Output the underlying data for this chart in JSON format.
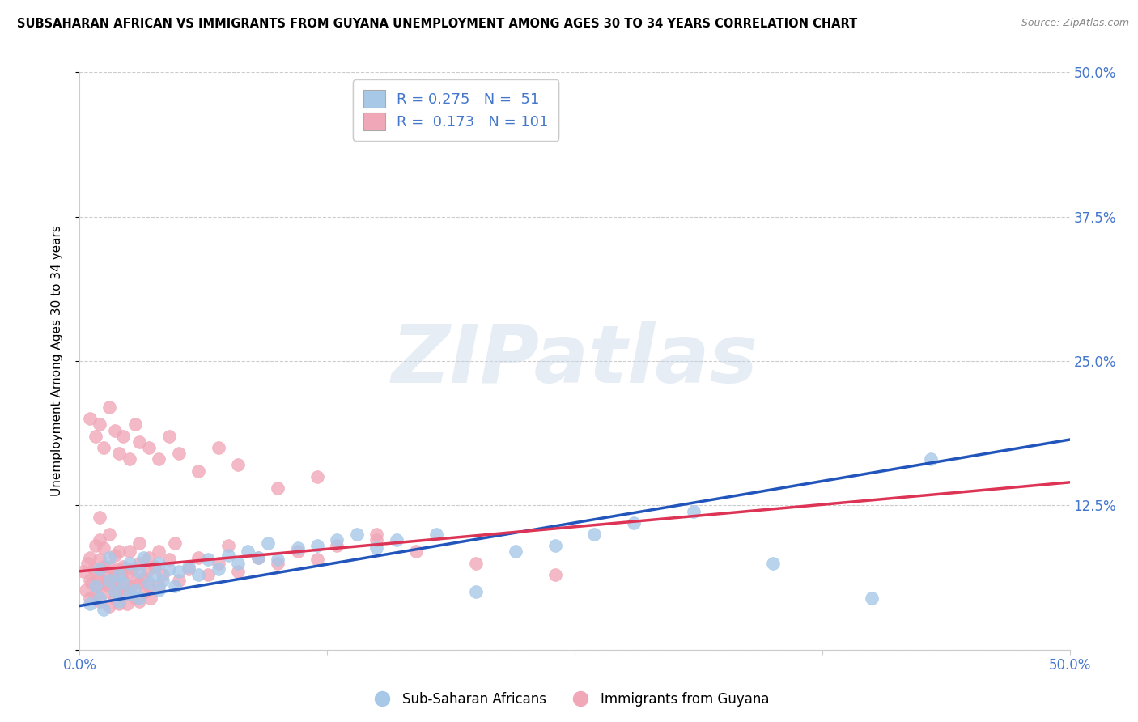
{
  "title": "SUBSAHARAN AFRICAN VS IMMIGRANTS FROM GUYANA UNEMPLOYMENT AMONG AGES 30 TO 34 YEARS CORRELATION CHART",
  "source": "Source: ZipAtlas.com",
  "ylabel": "Unemployment Among Ages 30 to 34 years",
  "xlim": [
    0,
    0.5
  ],
  "ylim": [
    0,
    0.5
  ],
  "xticks": [
    0.0,
    0.125,
    0.25,
    0.375,
    0.5
  ],
  "xticklabels": [
    "0.0%",
    "",
    "",
    "",
    "50.0%"
  ],
  "yticks": [
    0.0,
    0.125,
    0.25,
    0.375,
    0.5
  ],
  "yticklabels_right": [
    "",
    "12.5%",
    "25.0%",
    "37.5%",
    "50.0%"
  ],
  "blue_fill": "#a8c8e8",
  "pink_fill": "#f0a8b8",
  "blue_line": "#2255bb",
  "pink_line": "#dd3355",
  "tick_color": "#4477cc",
  "grid_color": "#cccccc",
  "R_blue": 0.275,
  "N_blue": 51,
  "R_pink": 0.173,
  "N_pink": 101,
  "legend_label_blue": "Sub-Saharan Africans",
  "legend_label_pink": "Immigrants from Guyana",
  "watermark": "ZIPatlas",
  "blue_scatter_x": [
    0.005,
    0.008,
    0.01,
    0.01,
    0.012,
    0.015,
    0.015,
    0.018,
    0.02,
    0.02,
    0.022,
    0.025,
    0.025,
    0.028,
    0.03,
    0.03,
    0.032,
    0.035,
    0.038,
    0.04,
    0.04,
    0.042,
    0.045,
    0.048,
    0.05,
    0.055,
    0.06,
    0.065,
    0.07,
    0.075,
    0.08,
    0.085,
    0.09,
    0.095,
    0.1,
    0.11,
    0.12,
    0.13,
    0.14,
    0.15,
    0.16,
    0.18,
    0.2,
    0.22,
    0.24,
    0.26,
    0.28,
    0.31,
    0.35,
    0.4,
    0.43
  ],
  "blue_scatter_y": [
    0.04,
    0.055,
    0.045,
    0.07,
    0.035,
    0.06,
    0.08,
    0.05,
    0.042,
    0.065,
    0.058,
    0.048,
    0.075,
    0.052,
    0.045,
    0.068,
    0.08,
    0.058,
    0.065,
    0.052,
    0.075,
    0.06,
    0.07,
    0.055,
    0.068,
    0.072,
    0.065,
    0.078,
    0.07,
    0.082,
    0.075,
    0.085,
    0.08,
    0.092,
    0.078,
    0.088,
    0.09,
    0.095,
    0.1,
    0.088,
    0.095,
    0.1,
    0.05,
    0.085,
    0.09,
    0.1,
    0.11,
    0.12,
    0.075,
    0.045,
    0.165
  ],
  "pink_scatter_x": [
    0.002,
    0.003,
    0.004,
    0.005,
    0.005,
    0.005,
    0.006,
    0.007,
    0.008,
    0.008,
    0.008,
    0.009,
    0.01,
    0.01,
    0.01,
    0.01,
    0.01,
    0.012,
    0.012,
    0.012,
    0.013,
    0.014,
    0.015,
    0.015,
    0.015,
    0.015,
    0.016,
    0.017,
    0.018,
    0.018,
    0.018,
    0.019,
    0.02,
    0.02,
    0.02,
    0.02,
    0.021,
    0.022,
    0.022,
    0.023,
    0.024,
    0.025,
    0.025,
    0.025,
    0.026,
    0.027,
    0.028,
    0.029,
    0.03,
    0.03,
    0.03,
    0.03,
    0.032,
    0.033,
    0.034,
    0.035,
    0.035,
    0.036,
    0.038,
    0.04,
    0.04,
    0.042,
    0.045,
    0.048,
    0.05,
    0.055,
    0.06,
    0.065,
    0.07,
    0.075,
    0.08,
    0.09,
    0.1,
    0.11,
    0.12,
    0.13,
    0.15,
    0.17,
    0.2,
    0.24,
    0.005,
    0.008,
    0.01,
    0.012,
    0.015,
    0.018,
    0.02,
    0.022,
    0.025,
    0.028,
    0.03,
    0.035,
    0.04,
    0.045,
    0.05,
    0.06,
    0.07,
    0.08,
    0.1,
    0.12,
    0.15
  ],
  "pink_scatter_y": [
    0.068,
    0.052,
    0.075,
    0.045,
    0.06,
    0.08,
    0.058,
    0.07,
    0.048,
    0.065,
    0.09,
    0.055,
    0.042,
    0.062,
    0.078,
    0.095,
    0.115,
    0.058,
    0.072,
    0.088,
    0.065,
    0.05,
    0.038,
    0.055,
    0.072,
    0.1,
    0.058,
    0.068,
    0.045,
    0.062,
    0.082,
    0.052,
    0.04,
    0.055,
    0.07,
    0.085,
    0.065,
    0.048,
    0.072,
    0.058,
    0.04,
    0.052,
    0.068,
    0.085,
    0.055,
    0.07,
    0.045,
    0.06,
    0.042,
    0.058,
    0.075,
    0.092,
    0.062,
    0.05,
    0.068,
    0.055,
    0.08,
    0.045,
    0.072,
    0.055,
    0.085,
    0.065,
    0.078,
    0.092,
    0.06,
    0.07,
    0.08,
    0.065,
    0.075,
    0.09,
    0.068,
    0.08,
    0.075,
    0.085,
    0.078,
    0.09,
    0.095,
    0.085,
    0.075,
    0.065,
    0.2,
    0.185,
    0.195,
    0.175,
    0.21,
    0.19,
    0.17,
    0.185,
    0.165,
    0.195,
    0.18,
    0.175,
    0.165,
    0.185,
    0.17,
    0.155,
    0.175,
    0.16,
    0.14,
    0.15,
    0.1
  ]
}
